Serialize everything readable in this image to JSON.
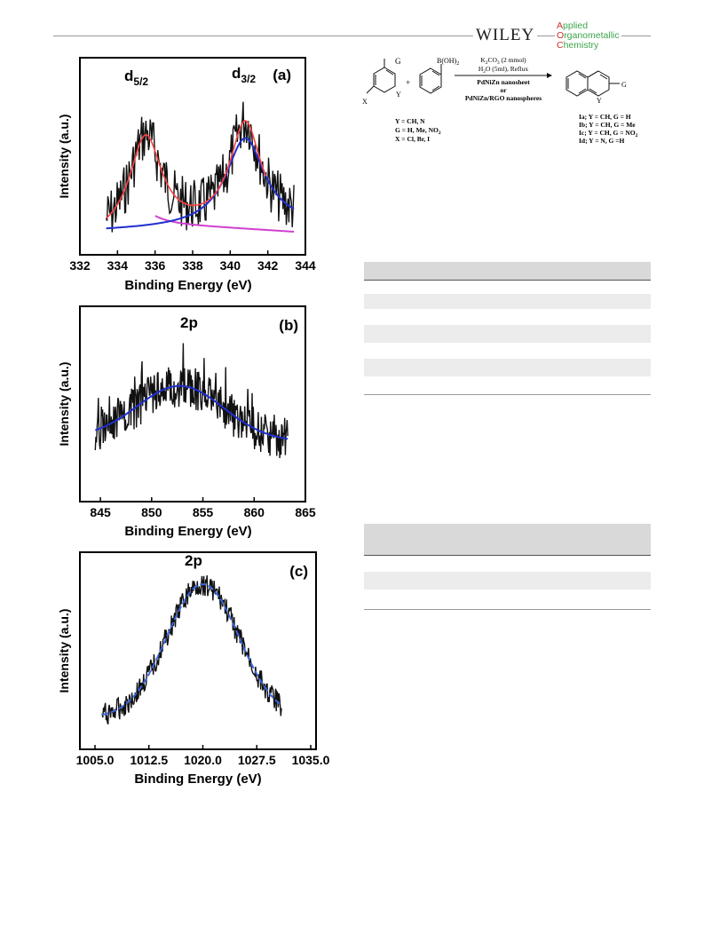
{
  "header": {
    "publisher": "WILEY",
    "journal_line1_cap": "A",
    "journal_line1_rest": "pplied",
    "journal_line2_cap": "O",
    "journal_line2_rest": "rganometallic",
    "journal_line3_cap": "C",
    "journal_line3_rest": "hemistry"
  },
  "colors": {
    "spectrum": "#111111",
    "fit_red": "#ff4040",
    "fit_blue": "#1f2fd0",
    "baseline_magenta": "#d040d0",
    "fit_blue_light": "#3a66e0",
    "journal_green": "#3aa64a",
    "journal_red": "#d22d2d"
  },
  "chart_data": [
    {
      "type": "line",
      "panel_label": "(a)",
      "xlabel": "Binding Energy (eV)",
      "ylabel": "Intensity (a.u.)",
      "xlim": [
        332,
        344
      ],
      "x_ticks": [
        "332",
        "334",
        "336",
        "338",
        "340",
        "342",
        "344"
      ],
      "peak_labels": [
        {
          "text": "d",
          "sub": "5/2",
          "x": 335.5
        },
        {
          "text": "d",
          "sub": "3/2",
          "x": 340.8
        }
      ],
      "series": [
        {
          "style": "raw spectrum",
          "x_range": [
            333.4,
            343.4
          ]
        },
        {
          "style": "red fit, peaks",
          "peaks": [
            335.5,
            340.8
          ]
        },
        {
          "style": "blue fit",
          "peak": 340.8
        },
        {
          "style": "magenta baseline",
          "x_range": [
            336,
            343.4
          ]
        }
      ]
    },
    {
      "type": "line",
      "panel_label": "(b)",
      "peak_label": "2p",
      "xlabel": "Binding Energy (eV)",
      "ylabel": "Intensity (a.u.)",
      "xlim": [
        843,
        865
      ],
      "x_ticks": [
        "845",
        "850",
        "855",
        "860",
        "865"
      ],
      "series": [
        {
          "style": "raw spectrum",
          "x_range": [
            844.5,
            863.3
          ]
        },
        {
          "style": "blue fit",
          "peak": 852.8
        }
      ]
    },
    {
      "type": "line",
      "panel_label": "(c)",
      "peak_label": "2p",
      "xlabel": "Binding Energy (eV)",
      "ylabel": "Intensity (a.u.)",
      "xlim": [
        1005,
        1035
      ],
      "x_ticks": [
        "1005.0",
        "1012.5",
        "1020.0",
        "1027.5",
        "1035.0"
      ],
      "series": [
        {
          "style": "raw spectrum",
          "x_range": [
            1006,
            1031
          ]
        },
        {
          "style": "blue fit",
          "peak": 1020.0
        }
      ]
    }
  ],
  "scheme": {
    "substituent_g": "G",
    "substituent_y": "Y",
    "substituent_x": "X",
    "boronic": "B(OH)",
    "boronic_sub": "2",
    "plus": "+",
    "cond1_a": "K",
    "cond1_sub1": "2",
    "cond1_b": "CO",
    "cond1_sub2": "3",
    "cond1_c": " (2 mmol)",
    "cond2_a": "H",
    "cond2_sub": "2",
    "cond2_b": "O (5ml), Reflux",
    "cat1": "PdNiZn nanosheet",
    "or": "or",
    "cat2": "PdNiZn/RGO nanospheres",
    "def1": "Y = CH, N",
    "def2_a": "G = H, Me, NO",
    "def2_sub": "2",
    "def3": "X = Cl, Br, I",
    "prod_g": "G",
    "prod_y": "Y",
    "prod1": "Ia; Y = CH, G = H",
    "prod2": "Ib; Y = CH, G = Me",
    "prod3_a": "Ic; Y = CH, G = NO",
    "prod3_sub": "2",
    "prod4": "Id; Y = N, G =H"
  }
}
